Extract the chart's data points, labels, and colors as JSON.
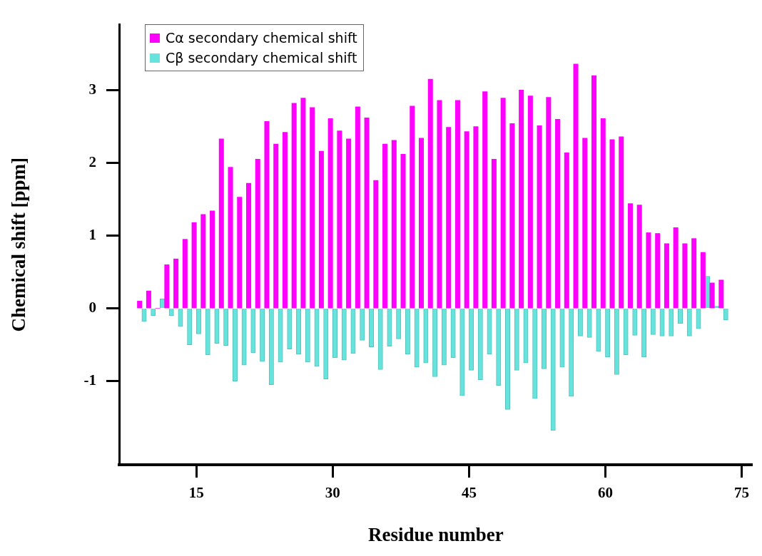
{
  "chart_data": {
    "type": "bar",
    "xlabel": "Residue number",
    "ylabel": "Chemical shift [ppm]",
    "x": [
      9,
      10,
      11,
      12,
      13,
      14,
      15,
      16,
      17,
      18,
      19,
      20,
      21,
      22,
      23,
      24,
      25,
      26,
      27,
      28,
      29,
      30,
      31,
      32,
      33,
      34,
      35,
      36,
      37,
      38,
      39,
      40,
      41,
      42,
      43,
      44,
      45,
      46,
      47,
      48,
      49,
      50,
      51,
      52,
      53,
      54,
      55,
      56,
      57,
      58,
      59,
      60,
      61,
      62,
      63,
      64,
      65,
      66,
      67,
      68,
      69,
      70,
      71,
      72,
      73
    ],
    "series": [
      {
        "name": "Cα secondary chemical shift",
        "color": "#ff00ff",
        "values": [
          0.1,
          0.24,
          0,
          0.6,
          0.68,
          0.95,
          1.18,
          1.29,
          1.34,
          2.33,
          1.94,
          1.53,
          1.72,
          2.05,
          2.57,
          2.26,
          2.42,
          2.82,
          2.89,
          2.76,
          2.16,
          2.61,
          2.44,
          2.33,
          2.77,
          2.62,
          1.76,
          2.26,
          2.31,
          2.12,
          2.78,
          2.34,
          3.15,
          2.86,
          2.49,
          2.86,
          2.43,
          2.5,
          2.98,
          2.05,
          2.89,
          2.54,
          3.0,
          2.92,
          2.51,
          2.9,
          2.6,
          2.14,
          3.36,
          2.34,
          3.2,
          2.61,
          2.32,
          2.36,
          1.44,
          1.42,
          1.04,
          1.03,
          0.89,
          1.11,
          0.89,
          0.96,
          0.77,
          0.35,
          0.39
        ]
      },
      {
        "name": "Cβ secondary chemical shift",
        "color": "#66e3dc",
        "values": [
          -0.18,
          -0.1,
          0.13,
          -0.1,
          -0.25,
          -0.5,
          -0.35,
          -0.64,
          -0.48,
          -0.51,
          -1.0,
          -0.78,
          -0.61,
          -0.73,
          -1.05,
          -0.74,
          -0.56,
          -0.63,
          -0.74,
          -0.8,
          -0.97,
          -0.68,
          -0.71,
          -0.62,
          -0.44,
          -0.53,
          -0.84,
          -0.52,
          -0.42,
          -0.63,
          -0.81,
          -0.75,
          -0.94,
          -0.78,
          -0.68,
          -1.2,
          -0.85,
          -0.98,
          -0.63,
          -1.06,
          -1.39,
          -0.85,
          -0.75,
          -1.24,
          -0.83,
          -1.68,
          -0.81,
          -1.21,
          -0.38,
          -0.4,
          -0.59,
          -0.67,
          -0.91,
          -0.64,
          -0.37,
          -0.67,
          -0.36,
          -0.38,
          -0.38,
          -0.21,
          -0.38,
          -0.28,
          0.44,
          0.03,
          -0.16
        ]
      }
    ],
    "xlim": [
      6.5,
      76.2
    ],
    "xticks": [
      15,
      30,
      45,
      60,
      75
    ],
    "ylim": [
      -2.15,
      3.9
    ],
    "yticks": [
      -1,
      0,
      1,
      2,
      3
    ],
    "grid": false,
    "legend": "top left"
  }
}
